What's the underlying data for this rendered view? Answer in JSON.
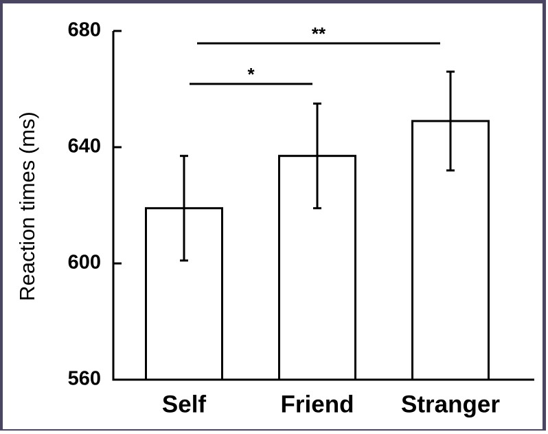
{
  "chart_data": {
    "type": "bar",
    "ylabel": "Reaction times (ms)",
    "categories": [
      "Self",
      "Friend",
      "Stranger"
    ],
    "values": [
      619,
      637,
      649
    ],
    "errors": [
      18,
      18,
      17
    ],
    "color": "#ffffff",
    "ylim": [
      560,
      680
    ],
    "yticks": [
      560,
      600,
      640,
      680
    ],
    "grid": false,
    "annotations": [
      "*",
      "**"
    ]
  }
}
